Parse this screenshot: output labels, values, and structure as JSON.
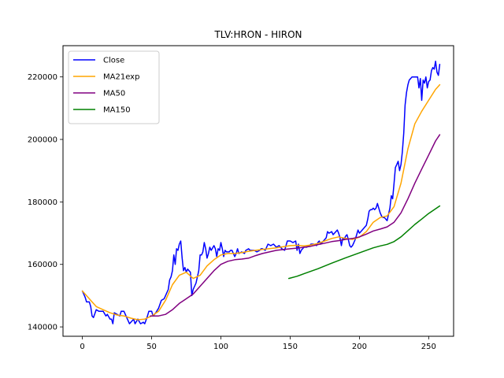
{
  "chart_data": {
    "type": "line",
    "title": "TLV:HRON - HIRON",
    "xlabel": "",
    "ylabel": "",
    "xlim": [
      -14,
      268
    ],
    "ylim": [
      137000,
      230000
    ],
    "xticks": [
      0,
      50,
      100,
      150,
      200,
      250
    ],
    "yticks": [
      140000,
      160000,
      180000,
      200000,
      220000
    ],
    "legend_position": "top-left",
    "grid": false,
    "series": [
      {
        "name": "Close",
        "color": "#0000ff",
        "points": [
          [
            0,
            151500
          ],
          [
            2,
            149500
          ],
          [
            3,
            148000
          ],
          [
            5,
            148000
          ],
          [
            6,
            146500
          ],
          [
            7,
            143500
          ],
          [
            8,
            143000
          ],
          [
            10,
            145500
          ],
          [
            12,
            145000
          ],
          [
            15,
            145000
          ],
          [
            17,
            143500
          ],
          [
            18,
            144000
          ],
          [
            20,
            142500
          ],
          [
            21,
            142500
          ],
          [
            22,
            141000
          ],
          [
            23,
            144500
          ],
          [
            25,
            144000
          ],
          [
            27,
            143500
          ],
          [
            28,
            145000
          ],
          [
            30,
            145000
          ],
          [
            32,
            143000
          ],
          [
            34,
            141000
          ],
          [
            35,
            141500
          ],
          [
            37,
            142500
          ],
          [
            38,
            141000
          ],
          [
            40,
            142500
          ],
          [
            42,
            141000
          ],
          [
            44,
            141500
          ],
          [
            45,
            141000
          ],
          [
            47,
            143500
          ],
          [
            48,
            145000
          ],
          [
            50,
            145000
          ],
          [
            51,
            143500
          ],
          [
            53,
            144500
          ],
          [
            55,
            146000
          ],
          [
            57,
            148500
          ],
          [
            59,
            149000
          ],
          [
            60,
            150000
          ],
          [
            62,
            152000
          ],
          [
            63,
            155000
          ],
          [
            64,
            156000
          ],
          [
            65,
            158000
          ],
          [
            66,
            163000
          ],
          [
            67,
            160000
          ],
          [
            68,
            165000
          ],
          [
            69,
            164500
          ],
          [
            70,
            166500
          ],
          [
            71,
            167500
          ],
          [
            72,
            162000
          ],
          [
            73,
            158000
          ],
          [
            74,
            159000
          ],
          [
            75,
            157500
          ],
          [
            76,
            158500
          ],
          [
            78,
            157500
          ],
          [
            79,
            150000
          ],
          [
            80,
            152000
          ],
          [
            82,
            154000
          ],
          [
            84,
            158000
          ],
          [
            85,
            163000
          ],
          [
            86,
            163000
          ],
          [
            87,
            164000
          ],
          [
            88,
            167000
          ],
          [
            89,
            165000
          ],
          [
            90,
            162000
          ],
          [
            91,
            163500
          ],
          [
            92,
            165500
          ],
          [
            93,
            164500
          ],
          [
            95,
            166000
          ],
          [
            96,
            165000
          ],
          [
            97,
            162500
          ],
          [
            98,
            165000
          ],
          [
            99,
            164500
          ],
          [
            100,
            167000
          ],
          [
            101,
            165000
          ],
          [
            102,
            162500
          ],
          [
            103,
            164500
          ],
          [
            104,
            164000
          ],
          [
            106,
            164000
          ],
          [
            107,
            164500
          ],
          [
            108,
            164500
          ],
          [
            110,
            162500
          ],
          [
            111,
            163500
          ],
          [
            112,
            165000
          ],
          [
            113,
            163500
          ],
          [
            115,
            164000
          ],
          [
            117,
            163500
          ],
          [
            118,
            164500
          ],
          [
            120,
            165000
          ],
          [
            121,
            164500
          ],
          [
            122,
            164500
          ],
          [
            124,
            164500
          ],
          [
            126,
            164000
          ],
          [
            128,
            164500
          ],
          [
            129,
            165000
          ],
          [
            130,
            165000
          ],
          [
            132,
            164500
          ],
          [
            134,
            166500
          ],
          [
            136,
            166000
          ],
          [
            138,
            166500
          ],
          [
            140,
            165500
          ],
          [
            142,
            166000
          ],
          [
            144,
            165000
          ],
          [
            146,
            164500
          ],
          [
            148,
            167500
          ],
          [
            150,
            167500
          ],
          [
            152,
            167000
          ],
          [
            154,
            167500
          ],
          [
            155,
            164500
          ],
          [
            156,
            166500
          ],
          [
            157,
            163500
          ],
          [
            158,
            164500
          ],
          [
            160,
            165500
          ],
          [
            162,
            165500
          ],
          [
            164,
            166000
          ],
          [
            165,
            166500
          ],
          [
            167,
            166500
          ],
          [
            169,
            166000
          ],
          [
            170,
            167000
          ],
          [
            171,
            167500
          ],
          [
            172,
            166500
          ],
          [
            174,
            167500
          ],
          [
            176,
            168500
          ],
          [
            177,
            170500
          ],
          [
            178,
            170000
          ],
          [
            180,
            170500
          ],
          [
            181,
            169500
          ],
          [
            182,
            170000
          ],
          [
            184,
            171000
          ],
          [
            185,
            170000
          ],
          [
            186,
            168500
          ],
          [
            187,
            166000
          ],
          [
            188,
            168500
          ],
          [
            189,
            168000
          ],
          [
            190,
            169000
          ],
          [
            191,
            169500
          ],
          [
            192,
            168000
          ],
          [
            193,
            166000
          ],
          [
            194,
            165500
          ],
          [
            195,
            166000
          ],
          [
            196,
            167000
          ],
          [
            197,
            168000
          ],
          [
            198,
            169500
          ],
          [
            199,
            171000
          ],
          [
            200,
            170000
          ],
          [
            201,
            170500
          ],
          [
            203,
            171500
          ],
          [
            204,
            172000
          ],
          [
            205,
            172500
          ],
          [
            206,
            174500
          ],
          [
            207,
            177000
          ],
          [
            208,
            177500
          ],
          [
            209,
            177500
          ],
          [
            210,
            178000
          ],
          [
            211,
            177500
          ],
          [
            212,
            178000
          ],
          [
            213,
            179500
          ],
          [
            214,
            178000
          ],
          [
            215,
            176500
          ],
          [
            216,
            175500
          ],
          [
            217,
            175000
          ],
          [
            218,
            175000
          ],
          [
            219,
            174500
          ],
          [
            220,
            174000
          ],
          [
            221,
            176000
          ],
          [
            222,
            178000
          ],
          [
            223,
            182000
          ],
          [
            224,
            181000
          ],
          [
            225,
            186000
          ],
          [
            226,
            191000
          ],
          [
            227,
            192000
          ],
          [
            228,
            193000
          ],
          [
            229,
            190000
          ],
          [
            230,
            192000
          ],
          [
            231,
            196000
          ],
          [
            232,
            202000
          ],
          [
            233,
            211000
          ],
          [
            234,
            215000
          ],
          [
            235,
            217500
          ],
          [
            236,
            219000
          ],
          [
            237,
            219500
          ],
          [
            238,
            220000
          ],
          [
            239,
            220000
          ],
          [
            240,
            220000
          ],
          [
            241,
            220000
          ],
          [
            242,
            220000
          ],
          [
            243,
            216500
          ],
          [
            244,
            219500
          ],
          [
            245,
            212500
          ],
          [
            246,
            219000
          ],
          [
            247,
            218000
          ],
          [
            248,
            220000
          ],
          [
            249,
            216500
          ],
          [
            250,
            218500
          ],
          [
            251,
            219000
          ],
          [
            252,
            222000
          ],
          [
            253,
            223000
          ],
          [
            254,
            222500
          ],
          [
            255,
            225000
          ],
          [
            256,
            221500
          ],
          [
            257,
            220500
          ],
          [
            258,
            224000
          ]
        ]
      },
      {
        "name": "MA21exp",
        "color": "#ffa500",
        "points": [
          [
            0,
            151500
          ],
          [
            5,
            149000
          ],
          [
            10,
            146500
          ],
          [
            15,
            145500
          ],
          [
            20,
            144500
          ],
          [
            25,
            143800
          ],
          [
            30,
            143500
          ],
          [
            35,
            142800
          ],
          [
            40,
            142300
          ],
          [
            45,
            142500
          ],
          [
            50,
            143500
          ],
          [
            55,
            145000
          ],
          [
            60,
            148500
          ],
          [
            65,
            153500
          ],
          [
            70,
            156500
          ],
          [
            75,
            157500
          ],
          [
            80,
            155500
          ],
          [
            85,
            156500
          ],
          [
            90,
            159500
          ],
          [
            95,
            161500
          ],
          [
            100,
            163000
          ],
          [
            105,
            163500
          ],
          [
            110,
            163500
          ],
          [
            115,
            163800
          ],
          [
            120,
            164200
          ],
          [
            125,
            164500
          ],
          [
            130,
            164800
          ],
          [
            140,
            165300
          ],
          [
            150,
            166000
          ],
          [
            155,
            166100
          ],
          [
            160,
            165900
          ],
          [
            165,
            166200
          ],
          [
            170,
            166700
          ],
          [
            175,
            167500
          ],
          [
            180,
            168300
          ],
          [
            185,
            168800
          ],
          [
            190,
            168300
          ],
          [
            195,
            168000
          ],
          [
            200,
            168700
          ],
          [
            205,
            170500
          ],
          [
            210,
            173500
          ],
          [
            215,
            175000
          ],
          [
            220,
            175500
          ],
          [
            225,
            178500
          ],
          [
            230,
            186000
          ],
          [
            235,
            197000
          ],
          [
            240,
            205000
          ],
          [
            245,
            209000
          ],
          [
            250,
            212500
          ],
          [
            255,
            216000
          ],
          [
            258,
            217500
          ]
        ]
      },
      {
        "name": "MA50",
        "color": "#800080",
        "points": [
          [
            49,
            143500
          ],
          [
            55,
            143500
          ],
          [
            60,
            144000
          ],
          [
            65,
            145500
          ],
          [
            70,
            147500
          ],
          [
            75,
            149000
          ],
          [
            80,
            150500
          ],
          [
            85,
            153000
          ],
          [
            90,
            155500
          ],
          [
            95,
            158000
          ],
          [
            100,
            160000
          ],
          [
            105,
            161000
          ],
          [
            110,
            161500
          ],
          [
            115,
            161700
          ],
          [
            120,
            162000
          ],
          [
            125,
            162800
          ],
          [
            130,
            163500
          ],
          [
            140,
            164500
          ],
          [
            150,
            165000
          ],
          [
            155,
            165200
          ],
          [
            160,
            165500
          ],
          [
            165,
            165800
          ],
          [
            170,
            166300
          ],
          [
            175,
            166800
          ],
          [
            180,
            167300
          ],
          [
            185,
            167600
          ],
          [
            190,
            168000
          ],
          [
            195,
            168300
          ],
          [
            200,
            168800
          ],
          [
            205,
            169700
          ],
          [
            210,
            170700
          ],
          [
            215,
            171300
          ],
          [
            220,
            172000
          ],
          [
            225,
            173500
          ],
          [
            230,
            176500
          ],
          [
            235,
            181000
          ],
          [
            240,
            186000
          ],
          [
            245,
            190500
          ],
          [
            250,
            195000
          ],
          [
            255,
            199500
          ],
          [
            258,
            201500
          ]
        ]
      },
      {
        "name": "MA150",
        "color": "#008000",
        "points": [
          [
            149,
            155500
          ],
          [
            155,
            156200
          ],
          [
            160,
            157000
          ],
          [
            170,
            158600
          ],
          [
            180,
            160400
          ],
          [
            190,
            162100
          ],
          [
            200,
            163700
          ],
          [
            210,
            165300
          ],
          [
            215,
            165900
          ],
          [
            220,
            166400
          ],
          [
            225,
            167300
          ],
          [
            230,
            168800
          ],
          [
            235,
            170800
          ],
          [
            240,
            172800
          ],
          [
            245,
            174500
          ],
          [
            250,
            176300
          ],
          [
            255,
            177800
          ],
          [
            258,
            178700
          ]
        ]
      }
    ]
  }
}
